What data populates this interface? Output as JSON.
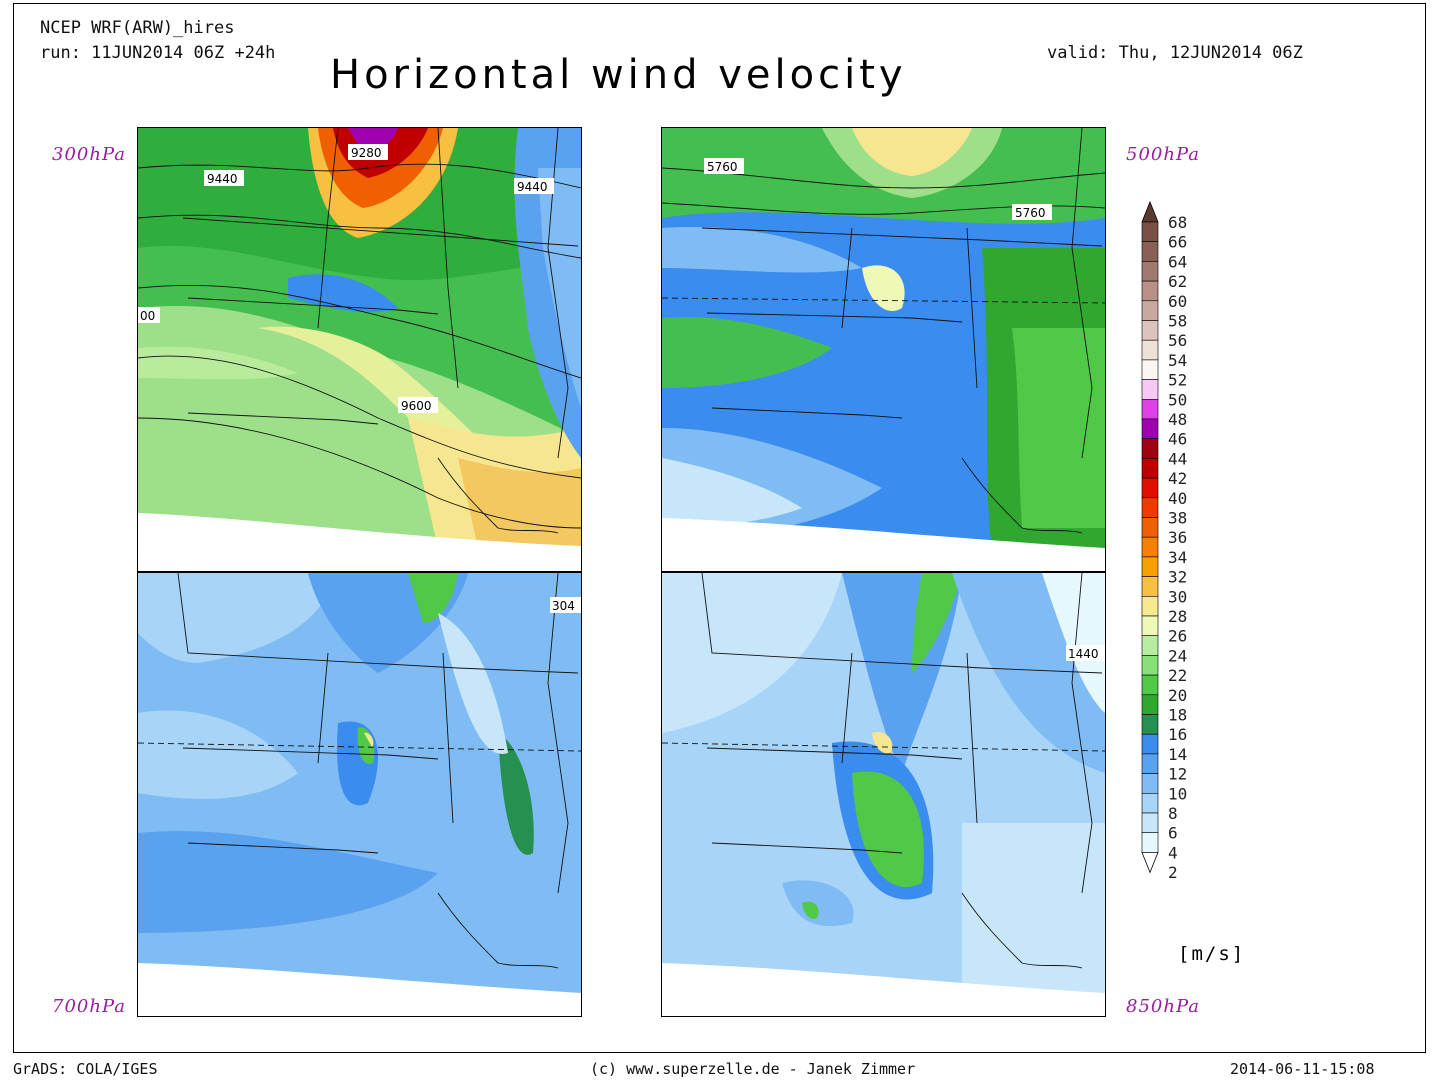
{
  "header": {
    "model": "NCEP WRF(ARW)_hires",
    "run": "run: 11JUN2014 06Z +24h",
    "valid": "valid: Thu, 12JUN2014 06Z",
    "title": "Horizontal wind velocity"
  },
  "panels": [
    {
      "level": "300hPa",
      "contours": [
        "9280",
        "9440",
        "9440",
        "00",
        "9600"
      ]
    },
    {
      "level": "500hPa",
      "contours": [
        "5760",
        "5760"
      ]
    },
    {
      "level": "700hPa",
      "contours": [
        "304"
      ]
    },
    {
      "level": "850hPa",
      "contours": [
        "1440"
      ]
    }
  ],
  "colorbar": {
    "values": [
      "68",
      "66",
      "64",
      "62",
      "60",
      "58",
      "56",
      "54",
      "52",
      "50",
      "48",
      "46",
      "44",
      "42",
      "40",
      "38",
      "36",
      "34",
      "32",
      "30",
      "28",
      "26",
      "24",
      "22",
      "20",
      "18",
      "16",
      "14",
      "12",
      "10",
      "8",
      "6",
      "4",
      "2"
    ],
    "colors": [
      "#5a3a30",
      "#7a5045",
      "#8a6055",
      "#a07a70",
      "#b89088",
      "#c8a8a0",
      "#dcc4bc",
      "#efe0d8",
      "#fbf6f2",
      "#f6c8f6",
      "#e040e8",
      "#a000b0",
      "#a00010",
      "#c00000",
      "#e01000",
      "#f03a00",
      "#f06000",
      "#f88000",
      "#f8a000",
      "#f8c040",
      "#f8e890",
      "#f0f8b8",
      "#b8eca0",
      "#88e078",
      "#50c848",
      "#30a830",
      "#259050",
      "#3a8cee",
      "#5aa2f0",
      "#80bcf4",
      "#a8d4f8",
      "#c8e6fa",
      "#e6f7fe"
    ],
    "units": "[m/s]"
  },
  "footer": {
    "left": "GrADS: COLA/IGES",
    "center": "(c) www.superzelle.de - Janek Zimmer",
    "right": "2014-06-11-15:08"
  }
}
